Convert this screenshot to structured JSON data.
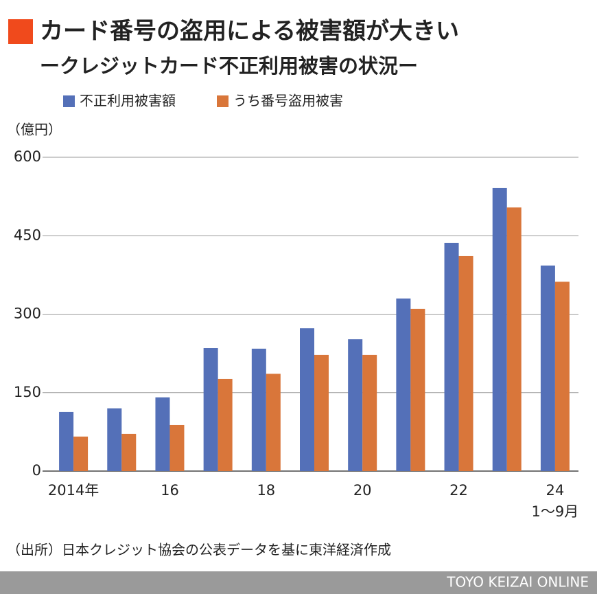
{
  "chart_data": {
    "type": "bar",
    "title": "カード番号の盗用による被害額が大きい",
    "subtitle": "ークレジットカード不正利用被害の状況ー",
    "unit_label": "（億円）",
    "categories": [
      "2014年",
      null,
      "16",
      null,
      "18",
      null,
      "20",
      null,
      "22",
      null,
      "24"
    ],
    "category_note": "1〜9月",
    "series": [
      {
        "name": "不正利用被害額",
        "color": "#5470b8",
        "values": [
          113,
          120,
          141,
          235,
          234,
          273,
          252,
          330,
          436,
          541,
          393
        ]
      },
      {
        "name": "うち番号盗用被害",
        "color": "#d9763a",
        "values": [
          66,
          71,
          88,
          176,
          186,
          222,
          222,
          310,
          411,
          504,
          362
        ]
      }
    ],
    "ylim": [
      0,
      600
    ],
    "yticks": [
      0,
      150,
      300,
      450,
      600
    ],
    "grid": true,
    "legend": "top-left",
    "source": "（出所）日本クレジット協会の公表データを基に東洋経済作成",
    "footer": "TOYO KEIZAI ONLINE"
  }
}
